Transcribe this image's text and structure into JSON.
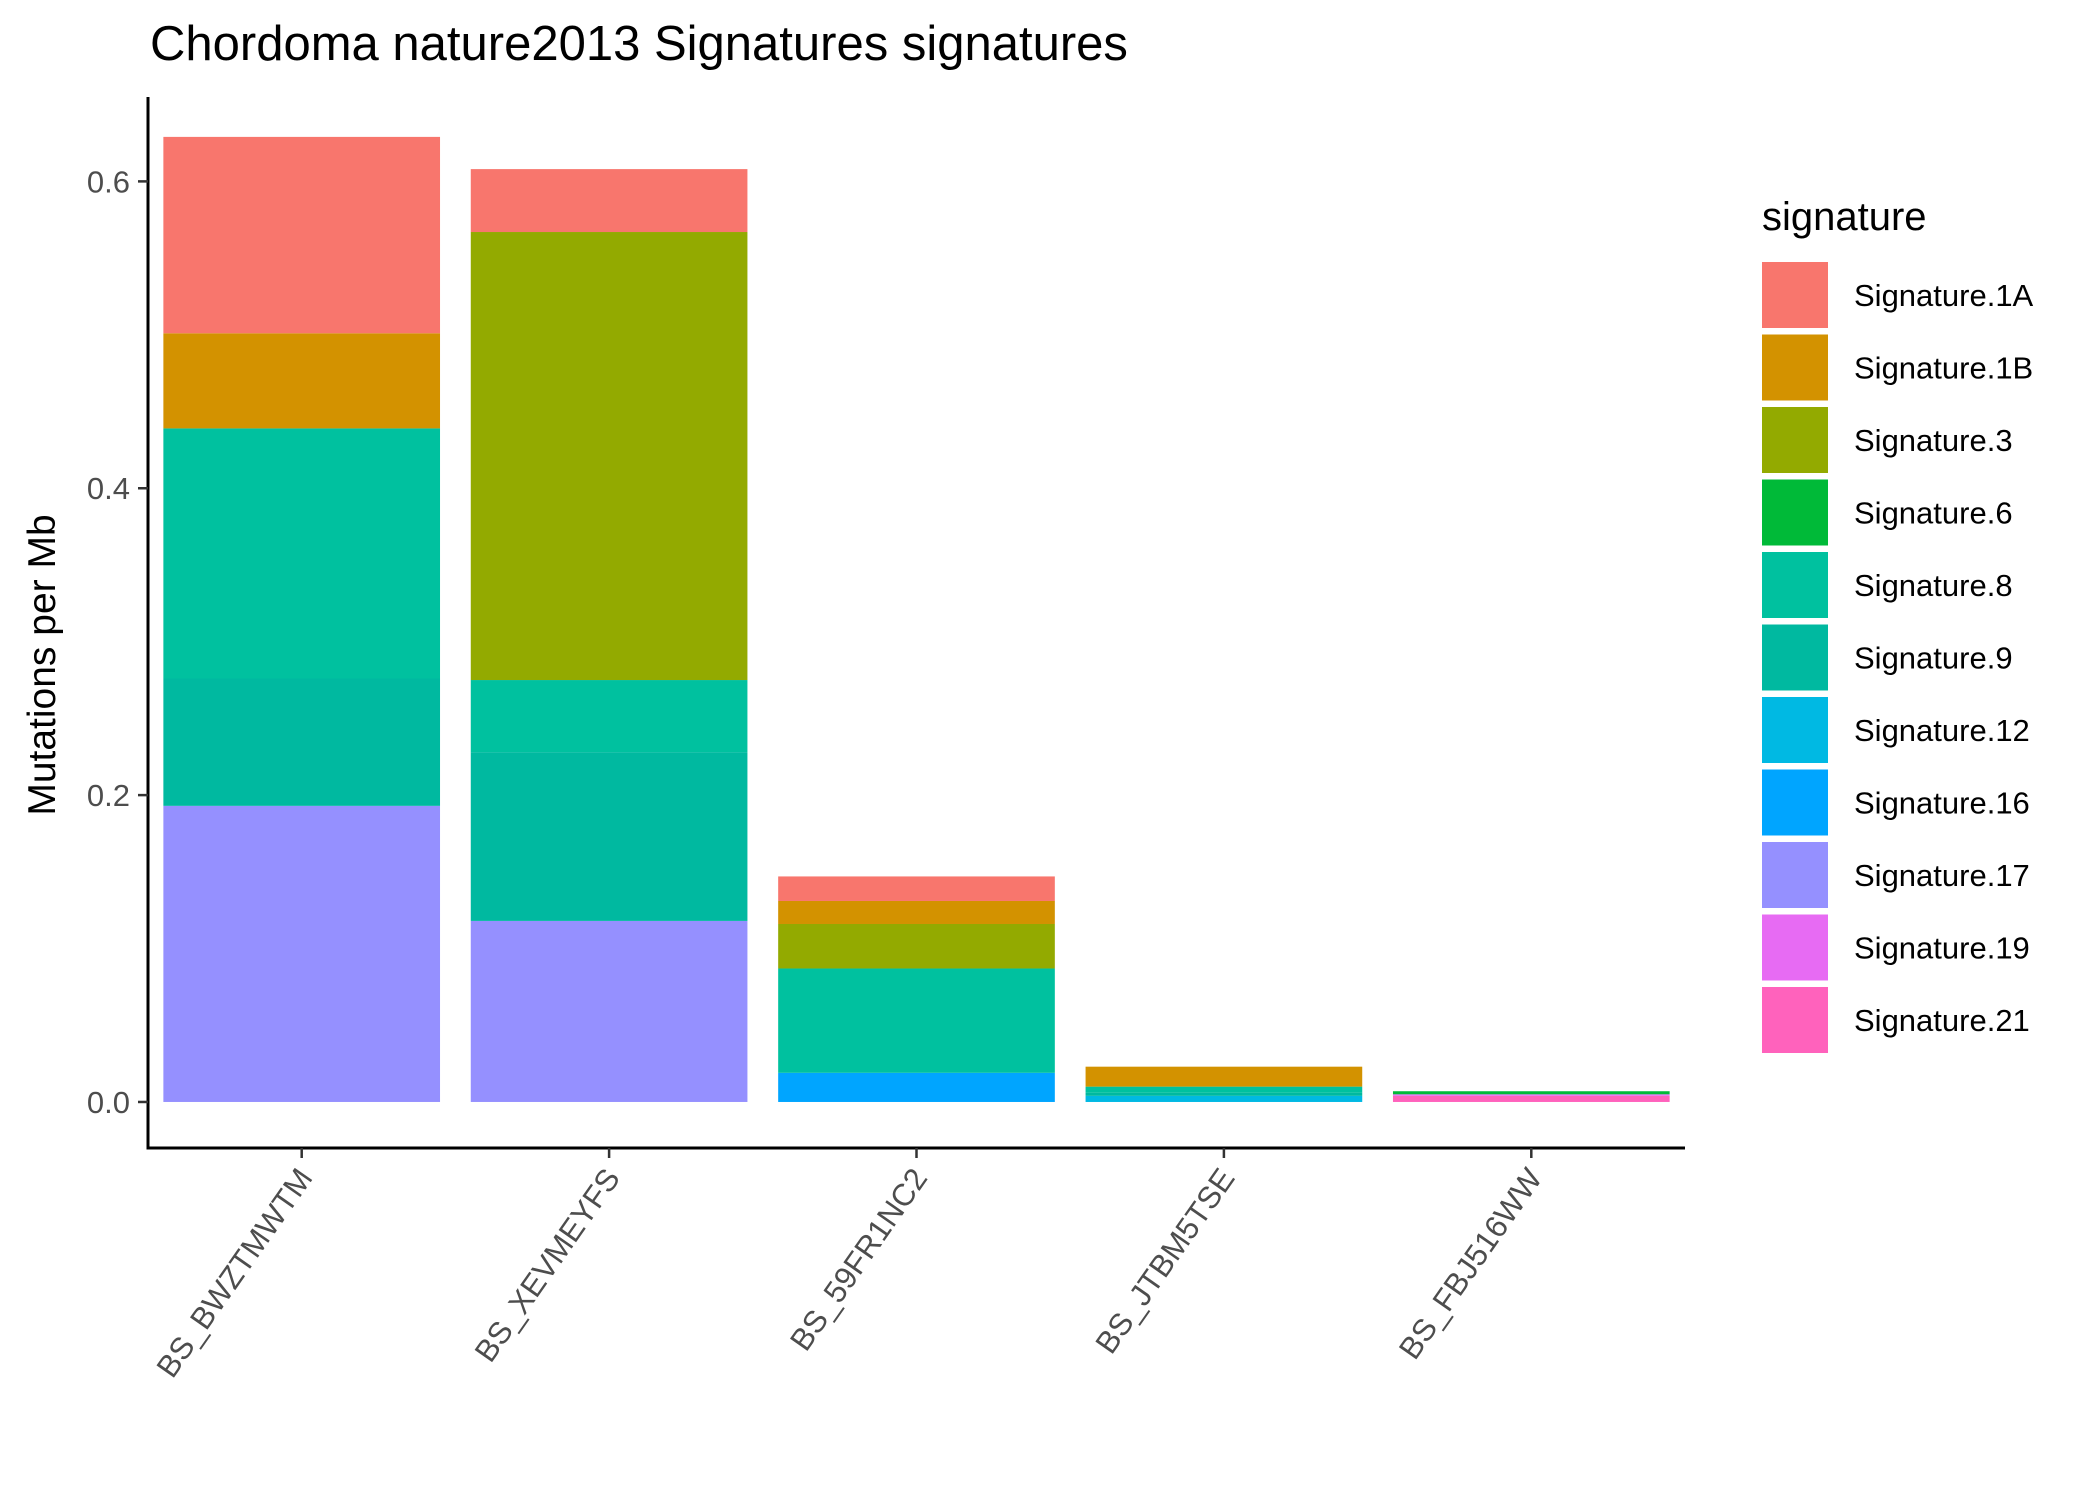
{
  "chart_data": {
    "type": "bar",
    "stacked": true,
    "title": "Chordoma nature2013 Signatures signatures",
    "xlabel": "",
    "ylabel": "Mutations per Mb",
    "ylim": [
      -0.03,
      0.655
    ],
    "yticks": [
      0.0,
      0.2,
      0.4,
      0.6
    ],
    "ytick_labels": [
      "0.0",
      "0.2",
      "0.4",
      "0.6"
    ],
    "categories": [
      "BS_BWZTMWTM",
      "BS_XEVMEYFS",
      "BS_59FR1NC2",
      "BS_JTBM5TSE",
      "BS_FBJ516WW"
    ],
    "legend_title": "signature",
    "legend_position": "right",
    "grid": false,
    "series": [
      {
        "name": "Signature.1A",
        "color": "#F8766D",
        "values": [
          0.128,
          0.041,
          0.016,
          0.0,
          0.0
        ]
      },
      {
        "name": "Signature.1B",
        "color": "#D39200",
        "values": [
          0.062,
          0.0,
          0.015,
          0.013,
          0.0
        ]
      },
      {
        "name": "Signature.3",
        "color": "#93AA00",
        "values": [
          0.0,
          0.292,
          0.029,
          0.0,
          0.0
        ]
      },
      {
        "name": "Signature.6",
        "color": "#00BA38",
        "values": [
          0.0,
          0.0,
          0.0,
          0.0,
          0.002
        ]
      },
      {
        "name": "Signature.8",
        "color": "#00C19F",
        "values": [
          0.163,
          0.047,
          0.068,
          0.004,
          0.0
        ]
      },
      {
        "name": "Signature.9",
        "color": "#00B9A0",
        "values": [
          0.083,
          0.11,
          0.0,
          0.002,
          0.0
        ]
      },
      {
        "name": "Signature.12",
        "color": "#00B9E3",
        "values": [
          0.0,
          0.0,
          0.0,
          0.004,
          0.0
        ]
      },
      {
        "name": "Signature.16",
        "color": "#00A5FF",
        "values": [
          0.0,
          0.0,
          0.019,
          0.0,
          0.0
        ]
      },
      {
        "name": "Signature.17",
        "color": "#9590FF",
        "values": [
          0.193,
          0.118,
          0.0,
          0.0,
          0.0
        ]
      },
      {
        "name": "Signature.19",
        "color": "#E76BF3",
        "values": [
          0.0,
          0.0,
          0.0,
          0.0,
          0.001
        ]
      },
      {
        "name": "Signature.21",
        "color": "#FF62BC",
        "values": [
          0.0,
          0.0,
          0.0,
          0.0,
          0.004
        ]
      }
    ]
  }
}
